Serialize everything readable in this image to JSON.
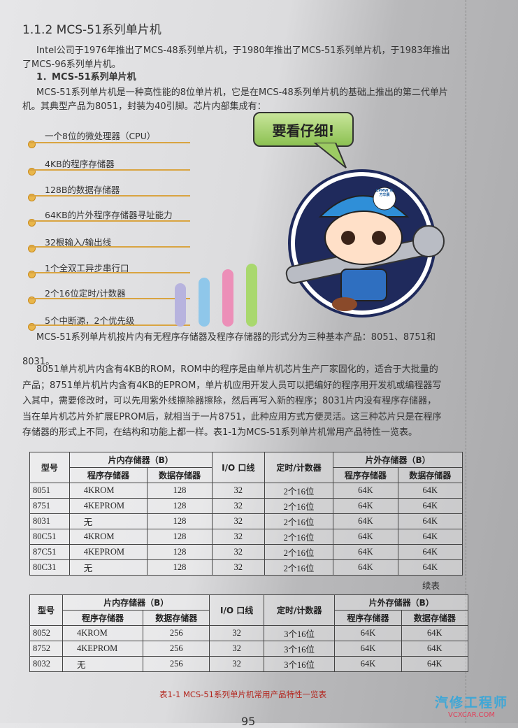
{
  "section_title": "1.1.2  MCS-51系列单片机",
  "intro": [
    "Intel公司于1976年推出了MCS-48系列单片机，于1980年推出了MCS-51系列单片机，于1983年推出",
    "了MCS-96系列单片机。"
  ],
  "sub_title": "1．MCS-51系列单片机",
  "para1": [
    "MCS-51系列单片机是一种高性能的8位单片机，它是在MCS-48系列单片机的基础上推出的第二代单片",
    "机。其典型产品为8051，封装为40引脚。芯片内部集成有："
  ],
  "features": [
    "一个8位的微处理器（CPU）",
    "4KB的程序存储器",
    "128B的数据存储器",
    "64KB的片外程序存储器寻址能力",
    "32根输入/输出线",
    "1个全双工异步串行口",
    "2个16位定时/计数器",
    "5个中断源，2个优先级"
  ],
  "bubble_text": "要看仔细!",
  "para2": [
    "MCS-51系列单片机按片内有无程序存储器及程序存储器的形式分为三种基本产品：8051、8751和",
    "8031。"
  ],
  "para3": [
    "8051单片机片内含有4KB的ROM，ROM中的程序是由单片机芯片生产厂家固化的，适合于大批量的",
    "产品；8751单片机片内含有4KB的EPROM，单片机应用开发人员可以把编好的程序用开发机或编程器写",
    "入其中，需要修改时，可以先用紫外线擦除器擦除，然后再写入新的程序；8031片内没有程序存储器，",
    "当在单片机芯片外扩展EPROM后，就相当于一片8751，此种应用方式方便灵活。这三种芯片只是在程序",
    "存储器的形式上不同，在结构和功能上都一样。表1-1为MCS-51系列单片机常用产品特性一览表。"
  ],
  "table_headers": {
    "model": "型号",
    "onchip": "片内存储器（B）",
    "program": "程序存储器",
    "data": "数据存储器",
    "io": "I/O 口线",
    "timer": "定时/计数器",
    "offchip": "片外存储器（B）"
  },
  "table1_rows": [
    [
      "8051",
      "4KROM",
      "128",
      "32",
      "2个16位",
      "64K",
      "64K"
    ],
    [
      "8751",
      "4KEPROM",
      "128",
      "32",
      "2个16位",
      "64K",
      "64K"
    ],
    [
      "8031",
      "无",
      "128",
      "32",
      "2个16位",
      "64K",
      "64K"
    ],
    [
      "80C51",
      "4KROM",
      "128",
      "32",
      "2个16位",
      "64K",
      "64K"
    ],
    [
      "87C51",
      "4KEPROM",
      "128",
      "32",
      "2个16位",
      "64K",
      "64K"
    ],
    [
      "80C31",
      "无",
      "128",
      "32",
      "2个16位",
      "64K",
      "64K"
    ]
  ],
  "continued_label": "续表",
  "table2_rows": [
    [
      "8052",
      "4KROM",
      "256",
      "32",
      "3个16位",
      "64K",
      "64K"
    ],
    [
      "8752",
      "4KEPROM",
      "256",
      "32",
      "3个16位",
      "64K",
      "64K"
    ],
    [
      "8032",
      "无",
      "256",
      "32",
      "3个16位",
      "64K",
      "64K"
    ]
  ],
  "caption": "表1-1  MCS-51系列单片机常用产品特性一览表",
  "page_number": "95",
  "watermark": {
    "cn": "汽修工程师",
    "url": "VCXCAR.COM"
  },
  "badge_text": "CPMW 东方华晨",
  "colors": {
    "accent_line": "#d9a441",
    "caption": "#b3261e",
    "bubble": "#8cc152",
    "circle": "#1f2a5c"
  }
}
